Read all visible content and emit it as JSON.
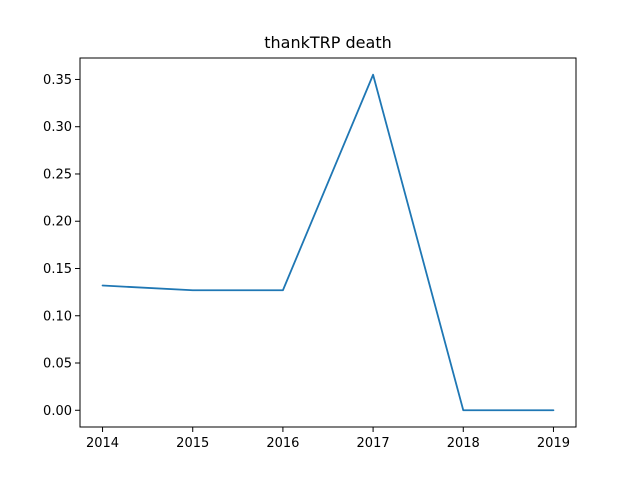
{
  "chart_data": {
    "type": "line",
    "title": "thankTRP death",
    "xlabel": "",
    "ylabel": "",
    "x": [
      2014,
      2015,
      2016,
      2017,
      2018,
      2019
    ],
    "x_tick_labels": [
      "2014",
      "2015",
      "2016",
      "2017",
      "2018",
      "2019"
    ],
    "xlim": [
      2013.75,
      2019.25
    ],
    "ylim": [
      -0.0177,
      0.3727
    ],
    "y_ticks": [
      0.0,
      0.05,
      0.1,
      0.15,
      0.2,
      0.25,
      0.3,
      0.35
    ],
    "y_tick_labels": [
      "0.00",
      "0.05",
      "0.10",
      "0.15",
      "0.20",
      "0.25",
      "0.30",
      "0.35"
    ],
    "grid": false,
    "series": [
      {
        "values": [
          0.132,
          0.127,
          0.127,
          0.355,
          0.0,
          0.0
        ],
        "color": "#1f77b4"
      }
    ]
  }
}
